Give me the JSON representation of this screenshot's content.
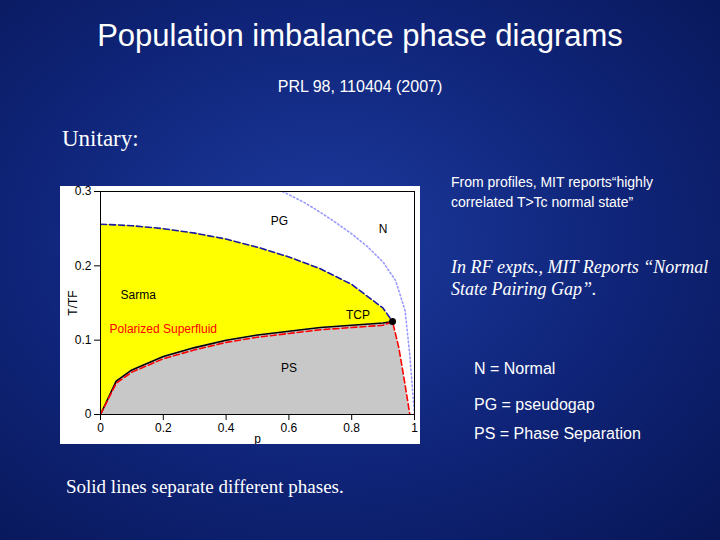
{
  "title": "Population imbalance phase diagrams",
  "subtitle": "PRL 98, 110404 (2007)",
  "heading": "Unitary:",
  "notes": [
    "From profiles, MIT reports“highly correlated T>Tc normal state”",
    "In RF expts., MIT Reports “Normal State Pairing Gap”."
  ],
  "key": [
    "N = Normal",
    "PG = pseudogap",
    "PS = Phase Separation"
  ],
  "caption": "Solid lines separate different phases.",
  "chart_data": {
    "type": "line",
    "xlabel": "p",
    "ylabel": "T/TF",
    "xlim": [
      0,
      1
    ],
    "ylim": [
      0,
      0.3
    ],
    "xticks": [
      0,
      0.2,
      0.4,
      0.6,
      0.8,
      1
    ],
    "yticks": [
      0,
      0.1,
      0.2,
      0.3
    ],
    "grid": false,
    "regions": [
      {
        "color": "#ffff00",
        "x": [
          0,
          0.05,
          0.1,
          0.2,
          0.3,
          0.4,
          0.5,
          0.6,
          0.7,
          0.8,
          0.9,
          0.93
        ],
        "lower": [
          0,
          0.045,
          0.06,
          0.078,
          0.09,
          0.1,
          0.107,
          0.112,
          0.117,
          0.12,
          0.123,
          0.125
        ],
        "upper": [
          0.256,
          0.255,
          0.254,
          0.25,
          0.244,
          0.236,
          0.225,
          0.212,
          0.196,
          0.175,
          0.143,
          0.125
        ]
      },
      {
        "color": "#c8c8c8",
        "x": [
          0,
          0.05,
          0.1,
          0.2,
          0.3,
          0.4,
          0.5,
          0.6,
          0.7,
          0.8,
          0.9,
          0.93,
          0.95,
          0.97,
          0.985
        ],
        "lower": [
          0,
          0,
          0,
          0,
          0,
          0,
          0,
          0,
          0,
          0,
          0,
          0,
          0,
          0,
          0
        ],
        "upper": [
          0,
          0.045,
          0.06,
          0.078,
          0.09,
          0.1,
          0.107,
          0.112,
          0.117,
          0.12,
          0.123,
          0.125,
          0.09,
          0.04,
          0
        ]
      }
    ],
    "series": [
      {
        "color": "#1a1aa6",
        "line_style": "dashed",
        "x": [
          0,
          0.05,
          0.1,
          0.2,
          0.3,
          0.4,
          0.5,
          0.6,
          0.7,
          0.8,
          0.9,
          0.93
        ],
        "values": [
          0.256,
          0.255,
          0.254,
          0.25,
          0.244,
          0.236,
          0.225,
          0.212,
          0.196,
          0.175,
          0.143,
          0.125
        ]
      },
      {
        "color": "#9999ff",
        "line_style": "dotted",
        "x": [
          0.58,
          0.65,
          0.7,
          0.75,
          0.8,
          0.85,
          0.9,
          0.94,
          0.97,
          0.985,
          1
        ],
        "values": [
          0.3,
          0.285,
          0.272,
          0.258,
          0.243,
          0.226,
          0.205,
          0.18,
          0.14,
          0.08,
          0
        ]
      },
      {
        "color": "#000000",
        "line_style": "solid",
        "x": [
          0,
          0.05,
          0.1,
          0.2,
          0.3,
          0.4,
          0.5,
          0.6,
          0.7,
          0.8,
          0.9,
          0.93
        ],
        "values": [
          0,
          0.045,
          0.06,
          0.078,
          0.09,
          0.1,
          0.107,
          0.112,
          0.117,
          0.12,
          0.123,
          0.125
        ]
      },
      {
        "color": "#ff0000",
        "line_style": "dashed",
        "x": [
          0,
          0.05,
          0.1,
          0.2,
          0.3,
          0.4,
          0.5,
          0.6,
          0.7,
          0.8,
          0.9,
          0.93,
          0.95,
          0.97,
          0.985
        ],
        "values": [
          0,
          0.042,
          0.057,
          0.075,
          0.087,
          0.097,
          0.104,
          0.109,
          0.114,
          0.117,
          0.12,
          0.125,
          0.09,
          0.04,
          0
        ]
      },
      {
        "type": "scatter",
        "color": "#000000",
        "marker": "dot",
        "x": [
          0.93
        ],
        "values": [
          0.125
        ]
      }
    ],
    "annotations": [
      {
        "text": "N",
        "x": 0.9,
        "y": 0.25,
        "color": "#000000"
      },
      {
        "text": "PG",
        "x": 0.57,
        "y": 0.26,
        "color": "#000000"
      },
      {
        "text": "Sarma",
        "x": 0.12,
        "y": 0.16,
        "color": "#000000"
      },
      {
        "text": "TCP",
        "x": 0.82,
        "y": 0.133,
        "color": "#000000"
      },
      {
        "text": "PS",
        "x": 0.6,
        "y": 0.063,
        "color": "#000000"
      },
      {
        "text": "Polarized Superfluid",
        "x": 0.2,
        "y": 0.115,
        "color": "#ff0000"
      }
    ]
  }
}
